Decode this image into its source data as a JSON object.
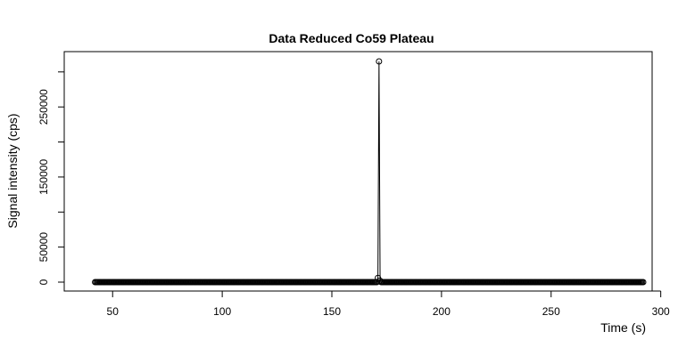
{
  "chart_data": {
    "type": "line",
    "title": "Data Reduced Co59 Plateau",
    "xlabel": "Time (s)",
    "ylabel": "Signal intensity (cps)",
    "xlim": [
      32,
      292
    ],
    "ylim": [
      0,
      315000
    ],
    "x_ticks": [
      50,
      100,
      150,
      200,
      250,
      300
    ],
    "y_ticks": [
      0,
      50000,
      150000,
      250000
    ],
    "grid": false,
    "legend": "none",
    "series": [
      {
        "x_start": 42,
        "x_end": 292,
        "x_step": 0.5,
        "baseline_value": 0,
        "spikes": [
          {
            "x": 171,
            "y": 6000
          },
          {
            "x": 171.5,
            "y": 315000
          },
          {
            "x": 172,
            "y": 2000
          }
        ]
      }
    ]
  }
}
